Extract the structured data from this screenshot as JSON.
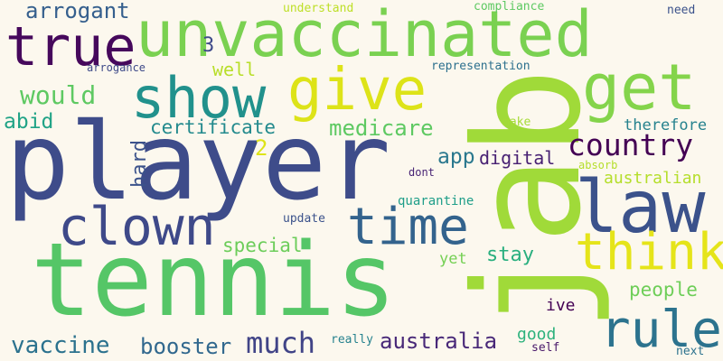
{
  "words": [
    {
      "text": "tennis",
      "color": "#55c667"
    },
    {
      "text": "player",
      "color": "#3e4c8a"
    },
    {
      "text": "jab",
      "color": "#a0da39"
    },
    {
      "text": "unvaccinated",
      "color": "#7ad151"
    },
    {
      "text": "get",
      "color": "#84d44b"
    },
    {
      "text": "give",
      "color": "#dde318"
    },
    {
      "text": "show",
      "color": "#21918c"
    },
    {
      "text": "true",
      "color": "#46085c"
    },
    {
      "text": "law",
      "color": "#3b528b"
    },
    {
      "text": "clown",
      "color": "#3e4989"
    },
    {
      "text": "time",
      "color": "#33638d"
    },
    {
      "text": "think",
      "color": "#e5e419"
    },
    {
      "text": "rule",
      "color": "#2c738e"
    },
    {
      "text": "country",
      "color": "#440154"
    },
    {
      "text": "much",
      "color": "#414487"
    },
    {
      "text": "vaccine",
      "color": "#2c728e"
    },
    {
      "text": "booster",
      "color": "#31688e"
    },
    {
      "text": "australia",
      "color": "#482878"
    },
    {
      "text": "arrogant",
      "color": "#355f8d"
    },
    {
      "text": "would",
      "color": "#5ec962"
    },
    {
      "text": "medicare",
      "color": "#5ec962"
    },
    {
      "text": "certificate",
      "color": "#238a8d"
    },
    {
      "text": "abid",
      "color": "#20a386"
    },
    {
      "text": "special",
      "color": "#6ccd5a"
    },
    {
      "text": "digital",
      "color": "#482173"
    },
    {
      "text": "app",
      "color": "#2a788e"
    },
    {
      "text": "australian",
      "color": "#b5de2b"
    },
    {
      "text": "therefore",
      "color": "#26828e"
    },
    {
      "text": "people",
      "color": "#6ece58"
    },
    {
      "text": "stay",
      "color": "#29af7f"
    },
    {
      "text": "hard",
      "color": "#3b528b"
    },
    {
      "text": "good",
      "color": "#2db27d"
    },
    {
      "text": "ive",
      "color": "#440154"
    },
    {
      "text": "yet",
      "color": "#75d054"
    },
    {
      "text": "well",
      "color": "#b8de29"
    },
    {
      "text": "3",
      "color": "#3f4a8a"
    },
    {
      "text": "2",
      "color": "#dde318"
    },
    {
      "text": "understand",
      "color": "#bddf26"
    },
    {
      "text": "compliance",
      "color": "#5ec962"
    },
    {
      "text": "need",
      "color": "#3b528b"
    },
    {
      "text": "arrogance",
      "color": "#3e4a89"
    },
    {
      "text": "representation",
      "color": "#2d708e"
    },
    {
      "text": "make",
      "color": "#a5db36"
    },
    {
      "text": "dont",
      "color": "#482475"
    },
    {
      "text": "absorb",
      "color": "#b5de2b"
    },
    {
      "text": "quarantine",
      "color": "#1f9e89"
    },
    {
      "text": "update",
      "color": "#3b528b"
    },
    {
      "text": "really",
      "color": "#26828e"
    },
    {
      "text": "self",
      "color": "#48186a"
    },
    {
      "text": "next",
      "color": "#2c728e"
    }
  ]
}
